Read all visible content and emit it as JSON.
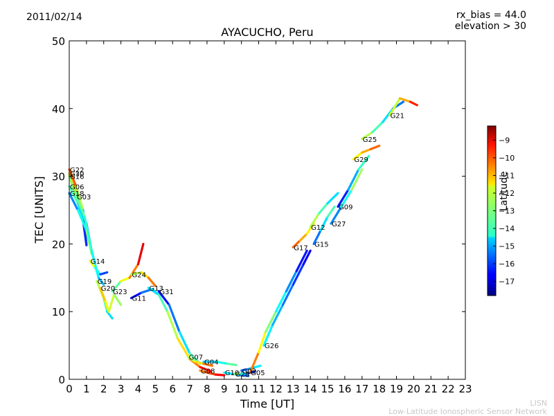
{
  "header": {
    "date": "2011/02/14",
    "rx_bias": "rx_bias = 44.0",
    "elevation": "elevation > 30"
  },
  "footer": {
    "line1": "LISN",
    "line2": "Low-Latitude Ionospheric Sensor Network"
  },
  "colorbar": {
    "label": "Latitude",
    "ticks": [
      -9,
      -10,
      -11,
      -12,
      -13,
      -14,
      -15,
      -16,
      -17
    ],
    "min": -17.8,
    "max": -8.2,
    "colormap": "jet"
  },
  "chart_data": {
    "type": "line",
    "title": "AYACUCHO, Peru",
    "xlabel": "Time [UT]",
    "ylabel": "TEC [UNITS]",
    "xlim": [
      0,
      23
    ],
    "ylim": [
      0,
      50
    ],
    "xticks": [
      0,
      1,
      2,
      3,
      4,
      5,
      6,
      7,
      8,
      9,
      10,
      11,
      12,
      13,
      14,
      15,
      16,
      17,
      18,
      19,
      20,
      21,
      22,
      23
    ],
    "yticks": [
      0,
      10,
      20,
      30,
      40,
      50
    ],
    "grid": false,
    "series": [
      {
        "name": "G22",
        "lat_start": -9,
        "lat_end": -16,
        "points": [
          [
            0,
            31
          ],
          [
            0.4,
            28.5
          ],
          [
            0.8,
            25
          ],
          [
            1.0,
            21
          ]
        ]
      },
      {
        "name": "G30",
        "lat_start": -10,
        "lat_end": -17,
        "points": [
          [
            0,
            30.4
          ],
          [
            0.4,
            27.5
          ],
          [
            0.8,
            24
          ],
          [
            1.0,
            20
          ]
        ]
      },
      {
        "name": "G16",
        "lat_start": -12,
        "lat_end": -17,
        "points": [
          [
            0,
            30
          ],
          [
            0.4,
            27
          ],
          [
            0.8,
            23.5
          ],
          [
            1.0,
            19.8
          ]
        ]
      },
      {
        "name": "G06",
        "lat_start": -13,
        "lat_end": -16,
        "points": [
          [
            0,
            28.5
          ],
          [
            0.5,
            26
          ],
          [
            1.0,
            23
          ],
          [
            1.3,
            19
          ]
        ]
      },
      {
        "name": "G18",
        "lat_start": -16,
        "lat_end": -12,
        "points": [
          [
            0,
            27.5
          ],
          [
            0.5,
            25
          ],
          [
            1.0,
            22
          ],
          [
            1.3,
            18.5
          ]
        ]
      },
      {
        "name": "G03",
        "lat_start": -13,
        "lat_end": -15,
        "points": [
          [
            0.4,
            27
          ],
          [
            0.9,
            24
          ],
          [
            1.3,
            19
          ],
          [
            1.7,
            15
          ],
          [
            2.0,
            14
          ]
        ]
      },
      {
        "name": "G14",
        "lat_start": -11,
        "lat_end": -17,
        "points": [
          [
            1.2,
            17.5
          ],
          [
            1.5,
            16.5
          ],
          [
            1.8,
            15.5
          ],
          [
            2.2,
            15.8
          ]
        ]
      },
      {
        "name": "G19",
        "lat_start": -12,
        "lat_end": -15,
        "points": [
          [
            1.6,
            14.5
          ],
          [
            2.0,
            12
          ],
          [
            2.2,
            10
          ],
          [
            2.5,
            9
          ]
        ]
      },
      {
        "name": "G20",
        "lat_start": -11,
        "lat_end": -13,
        "points": [
          [
            1.8,
            13.5
          ],
          [
            2.1,
            11.5
          ],
          [
            2.3,
            10
          ],
          [
            2.6,
            12.5
          ],
          [
            3.0,
            11
          ]
        ]
      },
      {
        "name": "G23",
        "lat_start": -14,
        "lat_end": -8.5,
        "points": [
          [
            2.5,
            13
          ],
          [
            3.0,
            14.5
          ],
          [
            3.5,
            15
          ],
          [
            4.0,
            17
          ],
          [
            4.3,
            20
          ]
        ]
      },
      {
        "name": "G24",
        "lat_start": -13,
        "lat_end": -10,
        "points": [
          [
            3.6,
            15.5
          ],
          [
            4.2,
            15.8
          ],
          [
            4.6,
            15
          ],
          [
            5.0,
            13.8
          ]
        ]
      },
      {
        "name": "G11",
        "lat_start": -17,
        "lat_end": -14,
        "points": [
          [
            3.6,
            12
          ],
          [
            4.2,
            12.8
          ],
          [
            4.8,
            13.3
          ],
          [
            5.2,
            12.5
          ]
        ]
      },
      {
        "name": "G13",
        "lat_start": -15,
        "lat_end": -9,
        "points": [
          [
            4.6,
            13.5
          ],
          [
            5.2,
            12.5
          ],
          [
            5.7,
            10
          ],
          [
            6.3,
            6
          ],
          [
            7.0,
            3
          ],
          [
            7.6,
            1.8
          ],
          [
            8.2,
            1.2
          ]
        ]
      },
      {
        "name": "G31",
        "lat_start": -17,
        "lat_end": -13,
        "points": [
          [
            5.2,
            13
          ],
          [
            5.8,
            11
          ],
          [
            6.4,
            7
          ],
          [
            7.0,
            3.8
          ],
          [
            7.6,
            2.3
          ]
        ]
      },
      {
        "name": "G07",
        "lat_start": -13,
        "lat_end": -10,
        "points": [
          [
            6.9,
            3.3
          ],
          [
            7.3,
            2.6
          ],
          [
            7.8,
            2.3
          ],
          [
            8.3,
            2.0
          ]
        ]
      },
      {
        "name": "G08",
        "lat_start": -11,
        "lat_end": -9,
        "points": [
          [
            7.6,
            1.3
          ],
          [
            8.0,
            1.0
          ],
          [
            8.5,
            0.7
          ],
          [
            9.0,
            0.6
          ]
        ]
      },
      {
        "name": "G04",
        "lat_start": -15,
        "lat_end": -13,
        "points": [
          [
            7.8,
            2.6
          ],
          [
            8.5,
            2.6
          ],
          [
            9.2,
            2.3
          ],
          [
            9.7,
            2.1
          ]
        ]
      },
      {
        "name": "G10",
        "lat_start": -14,
        "lat_end": -16,
        "points": [
          [
            9.0,
            1.0
          ],
          [
            9.5,
            0.8
          ],
          [
            10.0,
            0.6
          ],
          [
            10.4,
            0.5
          ]
        ]
      },
      {
        "name": "G28",
        "lat_start": -12,
        "lat_end": -17,
        "points": [
          [
            9.6,
            0.8
          ],
          [
            10.0,
            0.8
          ],
          [
            10.4,
            0.9
          ],
          [
            10.8,
            1.2
          ]
        ]
      },
      {
        "name": "G02",
        "lat_start": -16,
        "lat_end": -14,
        "points": [
          [
            10.0,
            1.3
          ],
          [
            10.4,
            1.5
          ],
          [
            10.8,
            1.8
          ],
          [
            11.1,
            2.0
          ]
        ]
      },
      {
        "name": "G05",
        "lat_start": -10,
        "lat_end": -17,
        "points": [
          [
            10.5,
            1.0
          ],
          [
            11.0,
            4
          ],
          [
            11.4,
            7
          ],
          [
            12.0,
            10
          ],
          [
            12.6,
            13
          ],
          [
            13.2,
            16
          ],
          [
            13.8,
            19
          ]
        ]
      },
      {
        "name": "G26",
        "lat_start": -14,
        "lat_end": -17,
        "points": [
          [
            11.3,
            5
          ],
          [
            11.8,
            8
          ],
          [
            12.4,
            11
          ],
          [
            13.0,
            14
          ],
          [
            13.6,
            17
          ],
          [
            14.0,
            19
          ]
        ]
      },
      {
        "name": "G17",
        "lat_start": -10,
        "lat_end": -12,
        "points": [
          [
            13.0,
            19.5
          ],
          [
            13.4,
            20.5
          ],
          [
            13.8,
            21.5
          ],
          [
            14.2,
            23
          ]
        ]
      },
      {
        "name": "G15",
        "lat_start": -16,
        "lat_end": -13,
        "points": [
          [
            14.2,
            20
          ],
          [
            14.6,
            22
          ],
          [
            15.0,
            24
          ],
          [
            15.4,
            25.5
          ]
        ]
      },
      {
        "name": "G12",
        "lat_start": -12,
        "lat_end": -15,
        "points": [
          [
            14.0,
            22.5
          ],
          [
            14.5,
            24.5
          ],
          [
            15.0,
            26
          ],
          [
            15.6,
            27.5
          ]
        ]
      },
      {
        "name": "G27",
        "lat_start": -16,
        "lat_end": -12,
        "points": [
          [
            15.2,
            23
          ],
          [
            15.8,
            25.5
          ],
          [
            16.4,
            28
          ],
          [
            17.0,
            31
          ]
        ]
      },
      {
        "name": "G09",
        "lat_start": -17,
        "lat_end": -13,
        "points": [
          [
            15.6,
            25.5
          ],
          [
            16.2,
            28
          ],
          [
            16.8,
            31
          ],
          [
            17.4,
            33
          ]
        ]
      },
      {
        "name": "G29",
        "lat_start": -12,
        "lat_end": -10,
        "points": [
          [
            16.5,
            32.5
          ],
          [
            17.0,
            33.5
          ],
          [
            17.5,
            34
          ],
          [
            18.0,
            34.5
          ]
        ]
      },
      {
        "name": "G25",
        "lat_start": -12,
        "lat_end": -16,
        "points": [
          [
            17.0,
            35.5
          ],
          [
            17.6,
            36.5
          ],
          [
            18.2,
            38
          ],
          [
            18.8,
            40
          ],
          [
            19.4,
            41
          ]
        ]
      },
      {
        "name": "G21",
        "lat_start": -13,
        "lat_end": -9,
        "points": [
          [
            18.6,
            39
          ],
          [
            19.2,
            41.5
          ],
          [
            19.8,
            41
          ],
          [
            20.2,
            40.5
          ]
        ]
      }
    ]
  }
}
